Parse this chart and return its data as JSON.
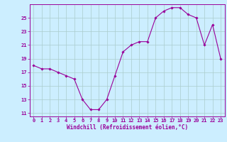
{
  "x": [
    0,
    1,
    2,
    3,
    4,
    5,
    6,
    7,
    8,
    9,
    10,
    11,
    12,
    13,
    14,
    15,
    16,
    17,
    18,
    19,
    20,
    21,
    22,
    23
  ],
  "y": [
    18,
    17.5,
    17.5,
    17,
    16.5,
    16,
    13,
    11.5,
    11.5,
    13,
    16.5,
    20,
    21,
    21.5,
    21.5,
    25,
    26,
    26.5,
    26.5,
    25.5,
    25,
    21,
    24,
    19
  ],
  "line_color": "#990099",
  "marker": "D",
  "marker_size": 1.8,
  "background_color": "#cceeff",
  "grid_color": "#aacccc",
  "xlabel": "Windchill (Refroidissement éolien,°C)",
  "yticks": [
    11,
    13,
    15,
    17,
    19,
    21,
    23,
    25
  ],
  "xticks": [
    0,
    1,
    2,
    3,
    4,
    5,
    6,
    7,
    8,
    9,
    10,
    11,
    12,
    13,
    14,
    15,
    16,
    17,
    18,
    19,
    20,
    21,
    22,
    23
  ],
  "ylim": [
    10.5,
    27.0
  ],
  "xlim": [
    -0.5,
    23.5
  ],
  "tick_color": "#990099",
  "label_color": "#990099",
  "font_family": "monospace",
  "tick_fontsize": 5.0,
  "xlabel_fontsize": 5.5
}
